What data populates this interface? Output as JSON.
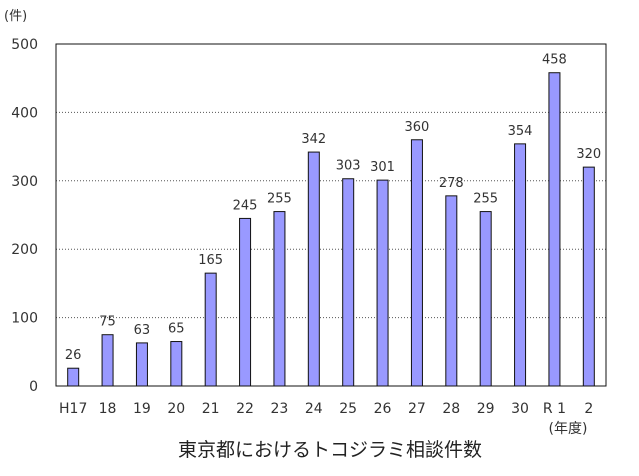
{
  "chart_data": {
    "type": "bar",
    "title": "東京都におけるトコジラミ相談件数",
    "ylabel": "(件)",
    "xlabel": "(年度)",
    "ylim": [
      0,
      500
    ],
    "yticks": [
      0,
      100,
      200,
      300,
      400,
      500
    ],
    "grid": true,
    "categories": [
      "H17",
      "18",
      "19",
      "20",
      "21",
      "22",
      "23",
      "24",
      "25",
      "26",
      "27",
      "28",
      "29",
      "30",
      "R 1",
      "2"
    ],
    "values": [
      26,
      75,
      63,
      65,
      165,
      245,
      255,
      342,
      303,
      301,
      360,
      278,
      255,
      354,
      458,
      320
    ],
    "colors": {
      "bar": "#9999ff",
      "bar_border": "#111111"
    }
  }
}
